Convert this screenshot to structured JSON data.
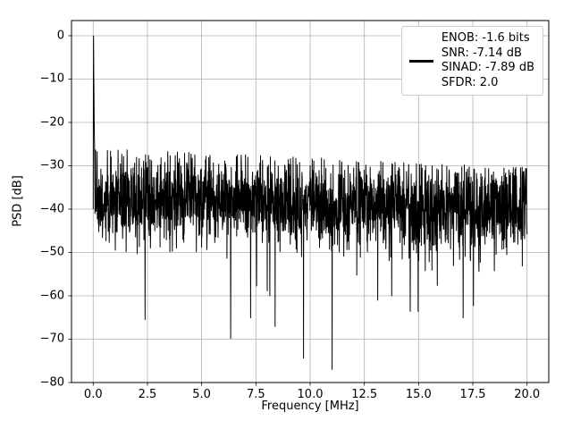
{
  "figure": {
    "background": "#ffffff"
  },
  "chart_data": {
    "type": "line",
    "title": "",
    "xlabel": "Frequency [MHz]",
    "ylabel": "PSD [dB]",
    "xlim": [
      -1,
      21
    ],
    "ylim": [
      -80,
      3.5
    ],
    "x_ticks": [
      0.0,
      2.5,
      5.0,
      7.5,
      10.0,
      12.5,
      15.0,
      17.5,
      20.0
    ],
    "x_tick_labels": [
      "0.0",
      "2.5",
      "5.0",
      "7.5",
      "10.0",
      "12.5",
      "15.0",
      "17.5",
      "20.0"
    ],
    "y_ticks": [
      0,
      -10,
      -20,
      -30,
      -40,
      -50,
      -60,
      -70,
      -80
    ],
    "y_tick_labels": [
      "0",
      "−10",
      "−20",
      "−30",
      "−40",
      "−50",
      "−60",
      "−70",
      "−80"
    ],
    "grid": true,
    "grid_color": "#b0b0b0",
    "axis_color": "#000000",
    "legend": {
      "position": "upper right",
      "lines": [
        "ENOB: -1.6 bits",
        "SNR: -7.14 dB",
        "SINAD: -7.89 dB",
        "SFDR: 2.0"
      ]
    },
    "series": [
      {
        "name": "psd",
        "color": "#000000",
        "description": "Noisy PSD spectrum: narrow carrier spike at 0 MHz peaking at 0 dB; dense noise band between roughly -50 dB and an upper envelope near -26 dB at low frequency sloping to about -31 dB at 20 MHz; sporadic deep nulls down to about -77 dB (e.g. near 8.5, 12.5, 15.0 and 19.3 MHz)."
      }
    ],
    "synthesis": {
      "seed": 42,
      "n_points": 2200,
      "x_start": 0,
      "x_end": 20,
      "noise_mean": -37.5,
      "noise_mean_slope": -0.12,
      "noise_std": 5.2,
      "envelope_top": -25.8,
      "envelope_slope": -0.22,
      "dip_probability": 0.012,
      "dip_min": 5,
      "dip_max": 33,
      "floor": -77.5,
      "spike_x": 0,
      "spike_peak": 0,
      "spike_profile": [
        -40,
        -12,
        0,
        -8,
        -15,
        -20,
        -23,
        -25
      ]
    }
  }
}
